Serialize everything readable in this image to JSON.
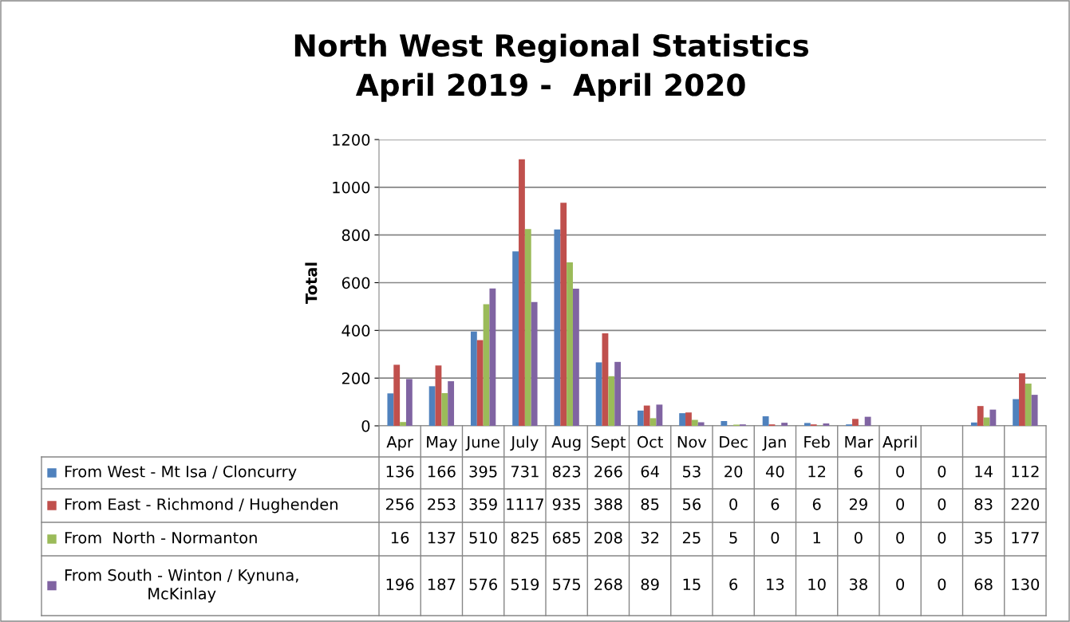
{
  "chart_data": {
    "type": "bar",
    "title": "North West Regional Statistics\nApril 2019 -  April 2020",
    "ylabel": "Total",
    "categories": [
      "Apr",
      "May",
      "June",
      "July",
      "Aug",
      "Sept",
      "Oct",
      "Nov",
      "Dec",
      "Jan",
      "Feb",
      "Mar",
      "April",
      null,
      null,
      null
    ],
    "series": [
      {
        "name": "From West - Mt Isa / Cloncurry",
        "color": "#4f81bd",
        "values": [
          136,
          166,
          395,
          731,
          823,
          266,
          64,
          53,
          20,
          40,
          12,
          6,
          0,
          0,
          14,
          112
        ]
      },
      {
        "name": "From East - Richmond / Hughenden",
        "color": "#c0504d",
        "values": [
          256,
          253,
          359,
          1117,
          935,
          388,
          85,
          56,
          0,
          6,
          6,
          29,
          0,
          0,
          83,
          220
        ]
      },
      {
        "name": "From  North - Normanton",
        "color": "#9bbb59",
        "values": [
          16,
          137,
          510,
          825,
          685,
          208,
          32,
          25,
          5,
          0,
          1,
          0,
          0,
          0,
          35,
          177
        ]
      },
      {
        "name": "From South - Winton / Kynuna,\nMcKinlay",
        "color": "#8064a2",
        "values": [
          196,
          187,
          576,
          519,
          575,
          268,
          89,
          15,
          6,
          13,
          10,
          38,
          0,
          0,
          68,
          130
        ]
      }
    ],
    "ylim": [
      0,
      1200
    ],
    "yticks": [
      0,
      200,
      400,
      600,
      800,
      1000,
      1200
    ],
    "grid": "y",
    "legend": "bottom",
    "data_labels": true
  }
}
